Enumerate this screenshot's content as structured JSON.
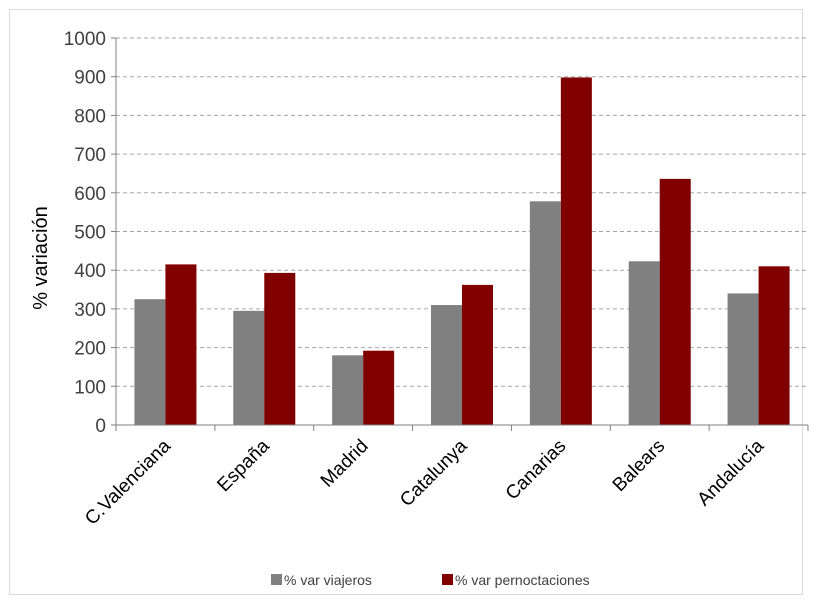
{
  "chart_data": {
    "type": "bar",
    "title": "",
    "xlabel": "",
    "ylabel": "% variación",
    "ylim": [
      0,
      1000
    ],
    "yticks": [
      0,
      100,
      200,
      300,
      400,
      500,
      600,
      700,
      800,
      900,
      1000
    ],
    "grid": true,
    "legend_position": "bottom",
    "categories": [
      "C.Valenciana",
      "España",
      "Madrid",
      "Catalunya",
      "Canarias",
      "Balears",
      "Andalucía"
    ],
    "series": [
      {
        "name": "% var viajeros",
        "color": "#808080",
        "values": [
          325,
          295,
          180,
          310,
          578,
          423,
          340
        ]
      },
      {
        "name": "% var pernoctaciones",
        "color": "#800000",
        "values": [
          415,
          393,
          192,
          362,
          898,
          636,
          410
        ]
      }
    ]
  }
}
